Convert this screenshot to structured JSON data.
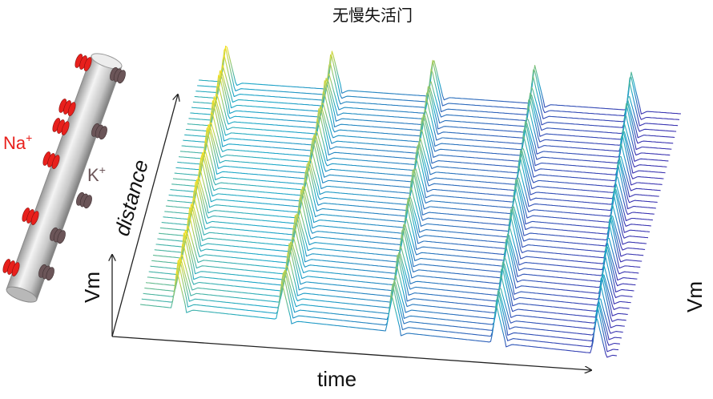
{
  "title": "无慢失活门",
  "labels": {
    "na": "Na",
    "na_sup": "+",
    "k": "K",
    "k_sup": "+",
    "time": "time",
    "distance": "distance",
    "vm_left": "Vm",
    "vm_right": "Vm"
  },
  "colors": {
    "na_channel": "#e8201c",
    "k_channel": "#6b5558",
    "axon_light": "#f2f2f2",
    "axon_dark": "#8a8a8a",
    "trace_low": "#3a2fb0",
    "trace_mid": "#1aa8c8",
    "trace_high": "#f5e020",
    "axes": "#222222"
  },
  "figure": {
    "trace_count": 42,
    "spike_waves": 5
  }
}
